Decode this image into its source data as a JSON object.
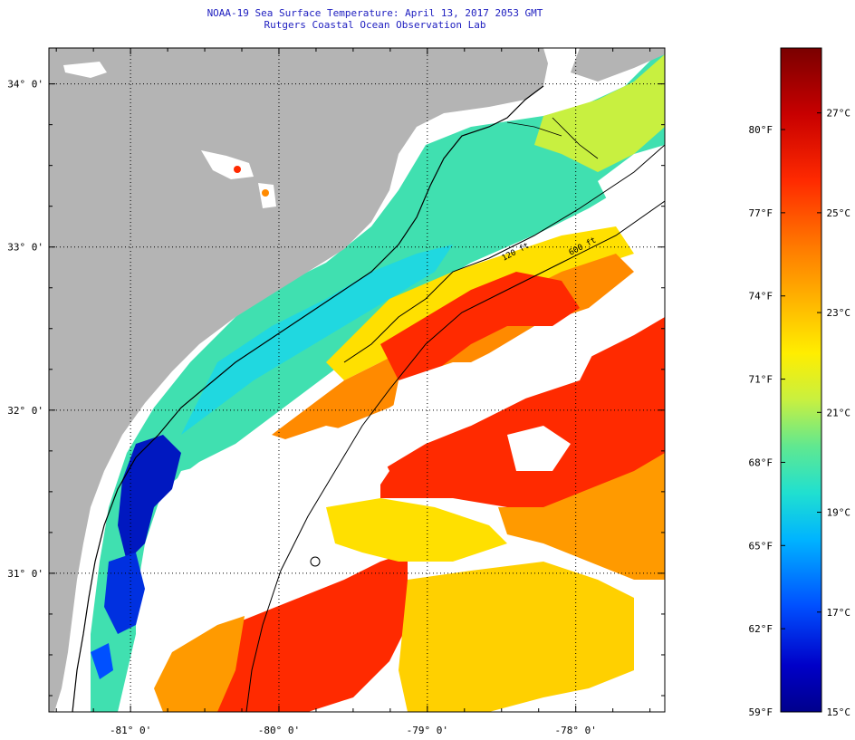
{
  "title_line1": "NOAA-19 Sea Surface Temperature:  April 13, 2017 2053 GMT",
  "title_line2": "Rutgers Coastal Ocean Observation Lab",
  "map": {
    "lon_range": [
      -81.55,
      -77.4
    ],
    "lat_range": [
      30.15,
      34.22
    ],
    "lat_ticks": [
      {
        "value": 34,
        "label": "34° 0'"
      },
      {
        "value": 33,
        "label": "33° 0'"
      },
      {
        "value": 32,
        "label": "32° 0'"
      },
      {
        "value": 31,
        "label": "31° 0'"
      }
    ],
    "lon_ticks": [
      {
        "value": -81,
        "label": "-81° 0'"
      },
      {
        "value": -80,
        "label": "-80° 0'"
      },
      {
        "value": -79,
        "label": "-79° 0'"
      },
      {
        "value": -78,
        "label": "-78° 0'"
      }
    ],
    "contours": [
      {
        "label": "120 ft"
      },
      {
        "label": "600 ft"
      }
    ],
    "colors": {
      "land": "#b4b4b4",
      "cloud": "#ffffff",
      "coastline": "#000000",
      "grid": "#000000"
    }
  },
  "colorbar": {
    "min_c": 15,
    "max_c": 28.3,
    "fahrenheit_labels": [
      "80°F",
      "77°F",
      "74°F",
      "71°F",
      "68°F",
      "65°F",
      "62°F",
      "59°F"
    ],
    "celsius_labels": [
      "27°C",
      "25°C",
      "23°C",
      "21°C",
      "19°C",
      "17°C",
      "15°C"
    ],
    "stops": [
      "#7a0000",
      "#c80000",
      "#ff2a00",
      "#ff7a00",
      "#ffb400",
      "#ffee00",
      "#c8f040",
      "#60e890",
      "#20e0d0",
      "#00b4ff",
      "#0050ff",
      "#0000c8",
      "#00008c"
    ]
  }
}
